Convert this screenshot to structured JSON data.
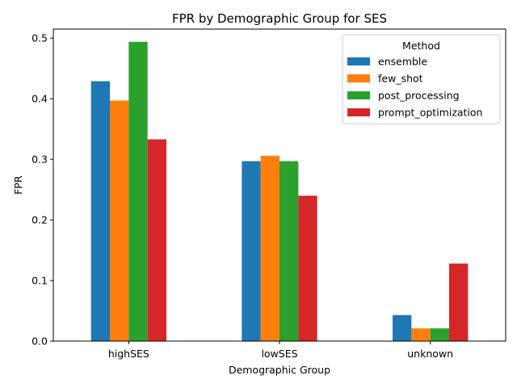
{
  "chart_data": {
    "type": "bar",
    "title": "FPR by Demographic Group for SES",
    "xlabel": "Demographic Group",
    "ylabel": "FPR",
    "categories": [
      "highSES",
      "lowSES",
      "unknown"
    ],
    "ylim": [
      0,
      0.515
    ],
    "yticks": [
      "0.0",
      "0.1",
      "0.2",
      "0.3",
      "0.4",
      "0.5"
    ],
    "grid": false,
    "legend": {
      "title": "Method",
      "placement": "top-right"
    },
    "series": [
      {
        "name": "ensemble",
        "color": "#1f77b4",
        "values": [
          0.429,
          0.297,
          0.043
        ]
      },
      {
        "name": "few_shot",
        "color": "#ff7f0e",
        "values": [
          0.397,
          0.306,
          0.021
        ]
      },
      {
        "name": "post_processing",
        "color": "#2ca02c",
        "values": [
          0.494,
          0.297,
          0.021
        ]
      },
      {
        "name": "prompt_optimization",
        "color": "#d62728",
        "values": [
          0.333,
          0.24,
          0.128
        ]
      }
    ]
  }
}
